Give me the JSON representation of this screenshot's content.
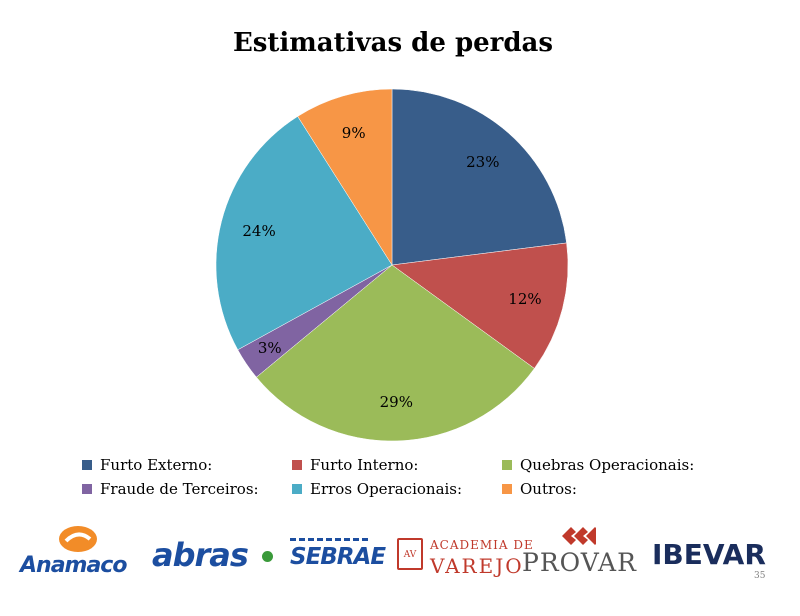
{
  "chart_data": {
    "type": "pie",
    "title": "Estimativas de perdas",
    "categories": [
      "Furto Externo:",
      "Furto Interno:",
      "Quebras Operacionais:",
      "Fraude de Terceiros:",
      "Erros Operacionais:",
      "Outros:"
    ],
    "values": [
      23,
      12,
      29,
      3,
      24,
      9
    ],
    "labels": [
      "23%",
      "12%",
      "29%",
      "3%",
      "24%",
      "9%"
    ],
    "colors": [
      "#385d8a",
      "#c0504d",
      "#9bbb59",
      "#8064a2",
      "#4bacc6",
      "#f79646"
    ],
    "legend_position": "bottom"
  },
  "logos": {
    "anamaco": "Anamaco",
    "abras": "abras",
    "sebrae": "SEBRAE",
    "av_mark": "AV",
    "academia_top": "ACADEMIA DE",
    "academia_bottom": "VAREJO",
    "provar": "PROVAR",
    "ibevar": "IBEVAR"
  },
  "page_number": "35"
}
